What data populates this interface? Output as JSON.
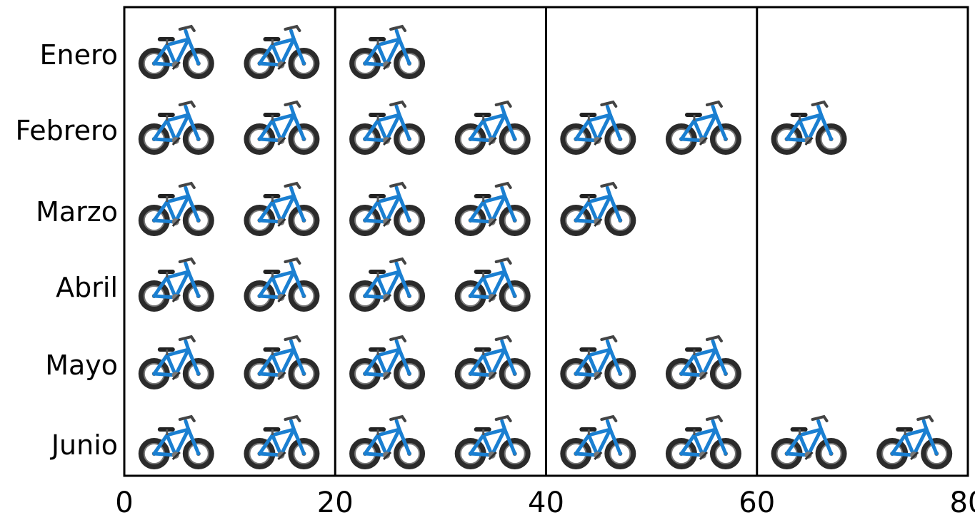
{
  "chart_data": {
    "type": "bar",
    "subtype": "pictograph",
    "icon": "bicycle-icon",
    "orientation": "horizontal",
    "categories": [
      "Enero",
      "Febrero",
      "Marzo",
      "Abril",
      "Mayo",
      "Junio"
    ],
    "values": [
      30,
      70,
      50,
      40,
      60,
      80
    ],
    "units_per_icon": 10,
    "xlim": [
      0,
      80
    ],
    "xticks": [
      0,
      20,
      40,
      60,
      80
    ],
    "xtick_labels": [
      "0",
      "20",
      "40",
      "60",
      "80"
    ],
    "grid": "vertical lines at 20, 40, 60",
    "title": "",
    "xlabel": "",
    "ylabel": "",
    "colors": {
      "frame": "#000000",
      "bike_frame": "#1a7fd1",
      "tire": "#2b2b2b"
    }
  }
}
